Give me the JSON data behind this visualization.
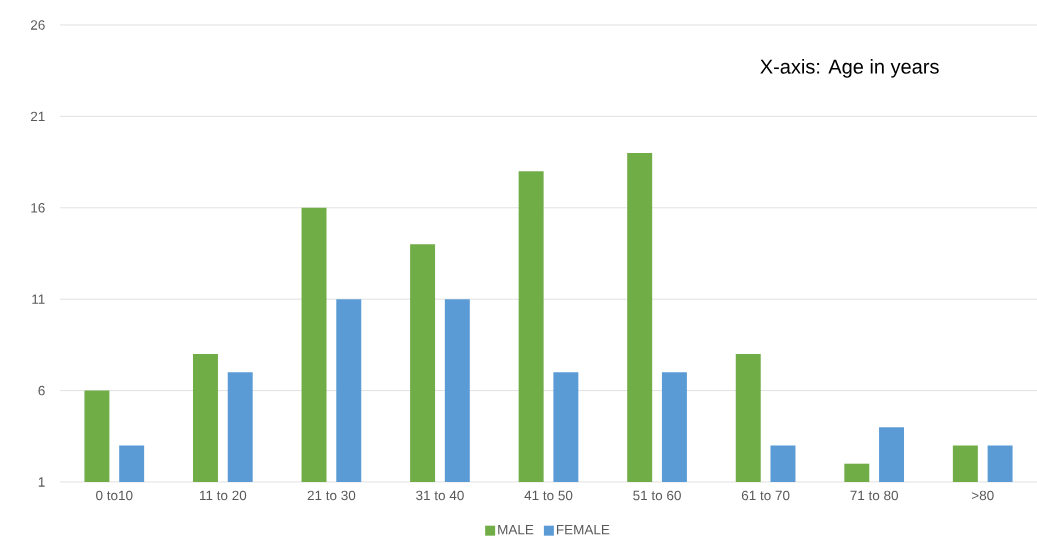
{
  "chart_data": {
    "type": "bar",
    "annotations": [
      "X-axis: Age in years"
    ],
    "categories": [
      "0 to10",
      "11 to 20",
      "21 to 30",
      "31 to 40",
      "41 to 50",
      "51 to 60",
      "61 to 70",
      "71 to 80",
      ">80"
    ],
    "series": [
      {
        "name": "MALE",
        "color": "#70ad47",
        "values": [
          6,
          8,
          16,
          14,
          18,
          19,
          8,
          2,
          3
        ]
      },
      {
        "name": "FEMALE",
        "color": "#5b9bd5",
        "values": [
          3,
          7,
          11,
          11,
          7,
          7,
          3,
          4,
          3
        ]
      }
    ],
    "ylim": [
      1,
      26
    ],
    "yticks": [
      1,
      6,
      11,
      16,
      21,
      26
    ],
    "grid": "y",
    "legend": "bottom"
  }
}
